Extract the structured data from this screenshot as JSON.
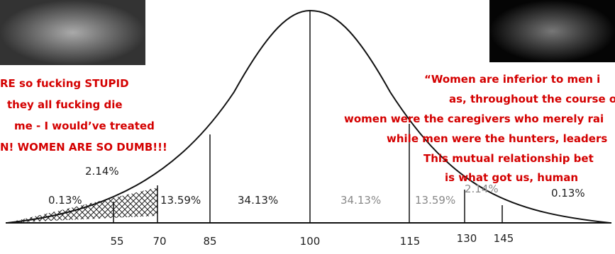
{
  "left_quote": {
    "lines": [
      "RE so fucking STUPID",
      "they all fucking die",
      "me - I would’ve treated",
      "N! WOMEN ARE SO DUMB!!!"
    ]
  },
  "right_quote": {
    "lines": [
      "“Women are inferior to men i",
      "as, throughout the course o",
      "women were the caregivers who merely rai",
      "while men were the hunters, leaders",
      "This mutual relationship bet",
      "is what got us, human"
    ]
  },
  "curve": {
    "region_labels": [
      "0.13%",
      "2.14%",
      "13.59%",
      "34.13%",
      "34.13%",
      "13.59%",
      "2.14%",
      "0.13%"
    ],
    "axis_labels": [
      "55",
      "70",
      "85",
      "100",
      "115",
      "130",
      "145"
    ]
  }
}
